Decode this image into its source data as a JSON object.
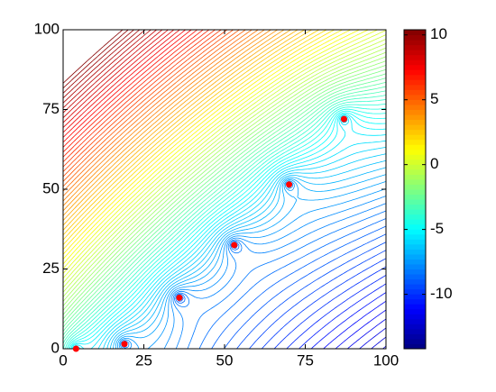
{
  "chart_data": {
    "type": "contour",
    "x": [
      4,
      19,
      36,
      53,
      70,
      87
    ],
    "y": [
      0,
      1.5,
      16,
      32.5,
      51.5,
      72
    ],
    "point_color": "#ff0000",
    "xlim": [
      0,
      100
    ],
    "ylim": [
      0,
      100
    ],
    "xticks": [
      0,
      25,
      50,
      75,
      100
    ],
    "yticks": [
      0,
      25,
      50,
      75,
      100
    ],
    "colorbar": {
      "clim": [
        -14.2,
        10.4
      ],
      "ticks": [
        -10,
        -5,
        0,
        5,
        10
      ],
      "colormap": "jet"
    }
  }
}
